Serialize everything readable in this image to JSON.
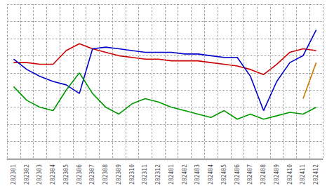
{
  "chart_data": {
    "type": "line",
    "categories": [
      "202301",
      "202302",
      "202303",
      "202304",
      "202305",
      "202306",
      "202307",
      "202308",
      "202309",
      "202310",
      "202311",
      "202312",
      "202401",
      "202402",
      "202403",
      "202404",
      "202405",
      "202406",
      "202407",
      "202408",
      "202409",
      "202410",
      "202411",
      "202412"
    ],
    "series": [
      {
        "color": "#cc0000",
        "values": [
          76,
          76,
          75,
          75,
          83,
          87,
          84,
          82,
          80,
          79,
          78,
          78,
          77,
          77,
          77,
          76,
          75,
          74,
          72,
          69,
          75,
          82,
          84,
          83
        ]
      },
      {
        "color": "#0000cc",
        "values": [
          78,
          72,
          68,
          65,
          63,
          58,
          84,
          85,
          84,
          83,
          82,
          82,
          82,
          81,
          81,
          80,
          79,
          79,
          68,
          48,
          65,
          76,
          80,
          95
        ]
      },
      {
        "color": "#009900",
        "values": [
          62,
          54,
          50,
          48,
          60,
          70,
          58,
          50,
          46,
          52,
          55,
          53,
          50,
          48,
          46,
          44,
          48,
          43,
          46,
          43,
          45,
          47,
          46,
          50
        ]
      },
      {
        "color": "#cc7700",
        "values": [
          null,
          null,
          null,
          null,
          null,
          null,
          null,
          null,
          null,
          null,
          null,
          null,
          null,
          null,
          null,
          null,
          null,
          null,
          null,
          null,
          null,
          null,
          55,
          76
        ]
      }
    ],
    "ylim": [
      20,
      110
    ],
    "yticks": [
      20,
      30,
      40,
      50,
      60,
      70,
      80,
      90,
      100,
      110
    ],
    "grid": true,
    "tick_labels": "x"
  }
}
